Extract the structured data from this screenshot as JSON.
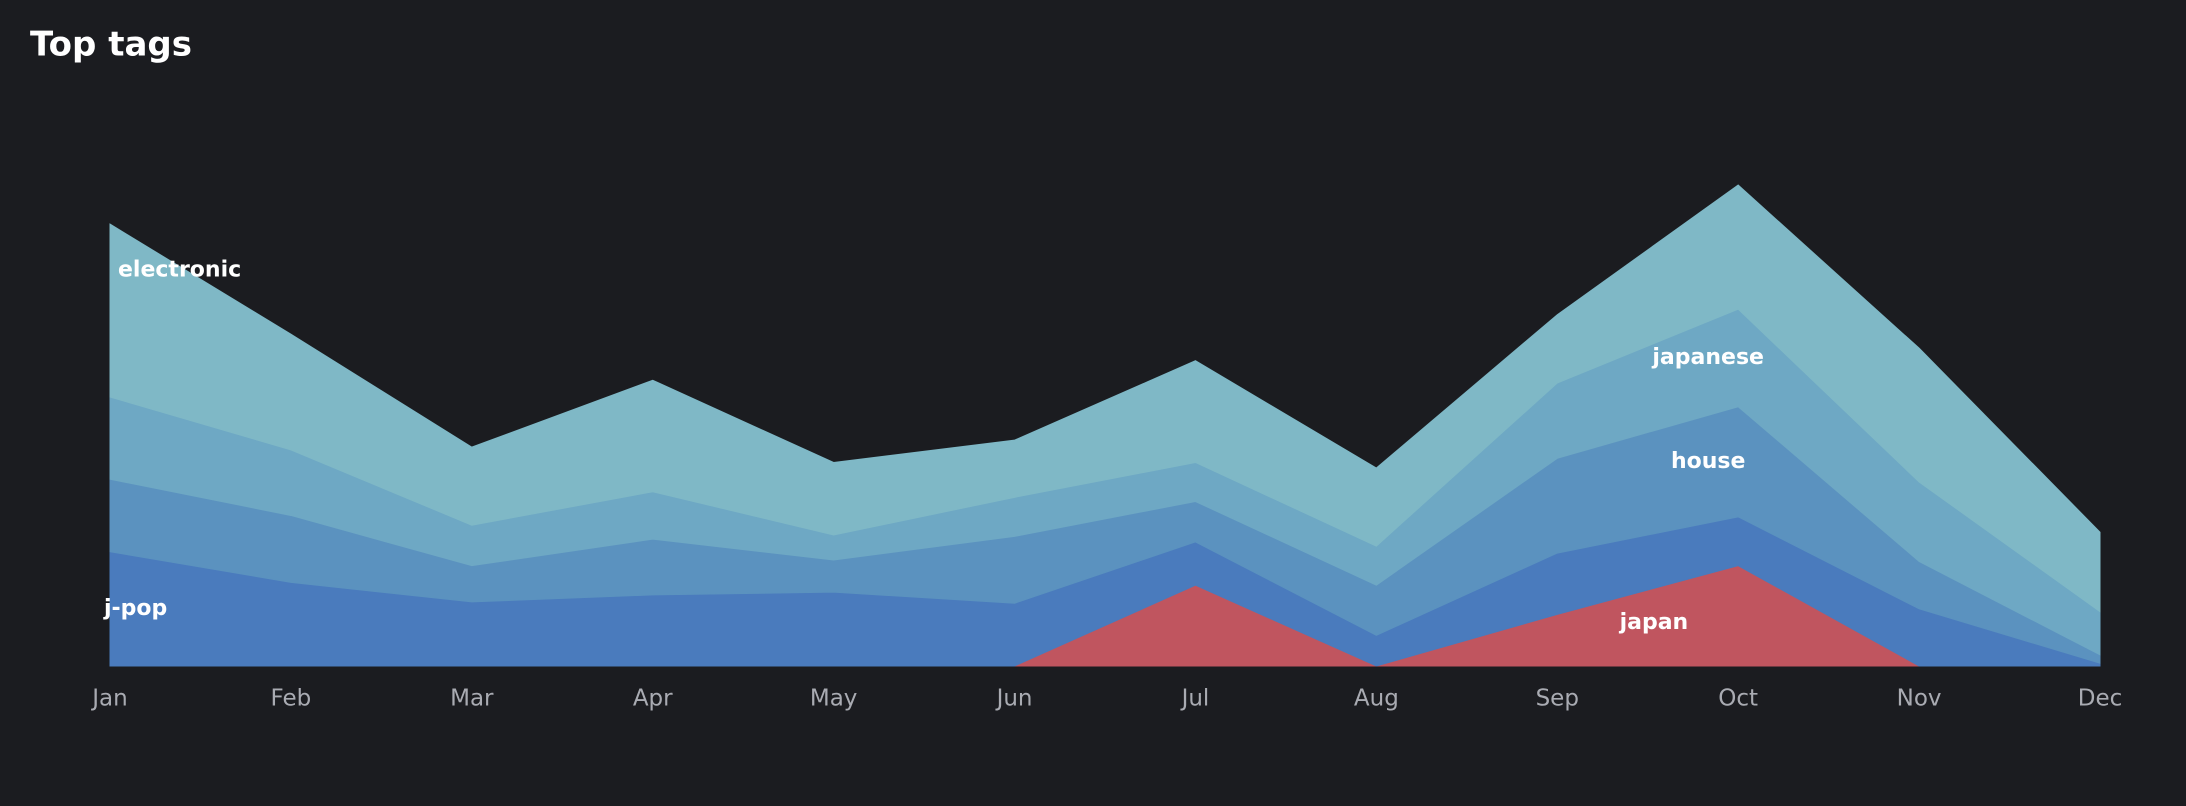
{
  "chart_data": {
    "type": "stacked_area",
    "title": "Top tags",
    "categories": [
      "Jan",
      "Feb",
      "Mar",
      "Apr",
      "May",
      "Jun",
      "Jul",
      "Aug",
      "Sep",
      "Oct",
      "Nov",
      "Dec"
    ],
    "series": [
      {
        "name": "japan",
        "color": "#c0555f",
        "values": [
          0,
          0,
          0,
          0,
          0,
          0,
          58,
          0,
          37,
          72,
          0,
          0
        ]
      },
      {
        "name": "j-pop",
        "color": "#4a7bbd",
        "values": [
          82,
          60,
          46,
          51,
          53,
          45,
          31,
          22,
          44,
          35,
          41,
          2
        ]
      },
      {
        "name": "house",
        "color": "#5b92bf",
        "values": [
          52,
          48,
          26,
          40,
          23,
          48,
          29,
          36,
          68,
          79,
          34,
          6
        ]
      },
      {
        "name": "japanese",
        "color": "#6ea8c4",
        "values": [
          59,
          47,
          29,
          34,
          18,
          28,
          28,
          28,
          54,
          70,
          57,
          31
        ]
      },
      {
        "name": "electronic",
        "color": "#7fb8c6",
        "values": [
          124,
          83,
          56,
          80,
          52,
          41,
          73,
          56,
          49,
          89,
          96,
          57
        ]
      }
    ],
    "ylim": [
      0,
      400
    ]
  }
}
